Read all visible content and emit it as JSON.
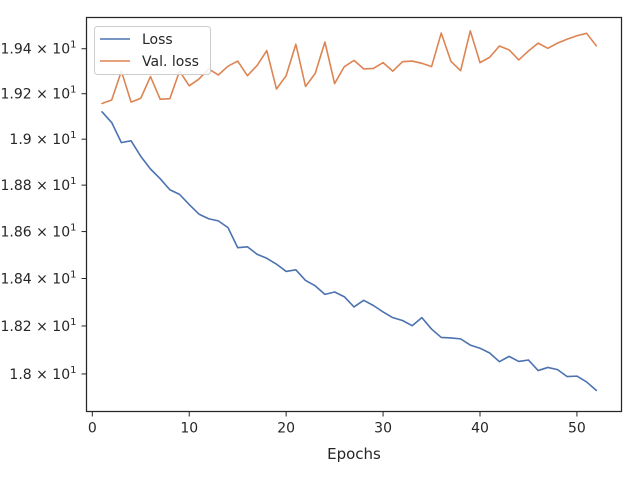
{
  "chart_data": {
    "type": "line",
    "title": "",
    "xlabel": "Epochs",
    "ylabel": "",
    "xlim": [
      -0.6,
      54.6
    ],
    "ylim": [
      17.845,
      19.54
    ],
    "yscale": "log",
    "grid": false,
    "legend_position": "top-left",
    "x_ticks": [
      0,
      10,
      20,
      30,
      40,
      50
    ],
    "x_tick_labels": [
      "0",
      "10",
      "20",
      "30",
      "40",
      "50"
    ],
    "y_ticks": [
      18.0,
      18.2,
      18.4,
      18.6,
      18.8,
      19.0,
      19.2,
      19.4
    ],
    "y_tick_labels": [
      {
        "mantissa": "1.8",
        "exp": "1"
      },
      {
        "mantissa": "1.82",
        "exp": "1"
      },
      {
        "mantissa": "1.84",
        "exp": "1"
      },
      {
        "mantissa": "1.86",
        "exp": "1"
      },
      {
        "mantissa": "1.88",
        "exp": "1"
      },
      {
        "mantissa": "1.9",
        "exp": "1"
      },
      {
        "mantissa": "1.92",
        "exp": "1"
      },
      {
        "mantissa": "1.94",
        "exp": "1"
      }
    ],
    "x": [
      1,
      2,
      3,
      4,
      5,
      6,
      7,
      8,
      9,
      10,
      11,
      12,
      13,
      14,
      15,
      16,
      17,
      18,
      19,
      20,
      21,
      22,
      23,
      24,
      25,
      26,
      27,
      28,
      29,
      30,
      31,
      32,
      33,
      34,
      35,
      36,
      37,
      38,
      39,
      40,
      41,
      42,
      43,
      44,
      45,
      46,
      47,
      48,
      49,
      50,
      51,
      52
    ],
    "series": [
      {
        "name": "Loss",
        "color": "#4c72b0",
        "values": [
          19.12,
          19.073,
          18.985,
          18.993,
          18.925,
          18.87,
          18.828,
          18.78,
          18.76,
          18.716,
          18.675,
          18.655,
          18.646,
          18.617,
          18.531,
          18.535,
          18.503,
          18.486,
          18.461,
          18.43,
          18.437,
          18.392,
          18.369,
          18.333,
          18.343,
          18.323,
          18.28,
          18.308,
          18.286,
          18.259,
          18.235,
          18.223,
          18.201,
          18.235,
          18.187,
          18.152,
          18.15,
          18.146,
          18.12,
          18.107,
          18.087,
          18.051,
          18.073,
          18.052,
          18.058,
          18.014,
          18.027,
          18.018,
          17.989,
          17.991,
          17.967,
          17.932
        ]
      },
      {
        "name": "Val. loss",
        "color": "#dd8452",
        "values": [
          19.157,
          19.172,
          19.3,
          19.163,
          19.18,
          19.276,
          19.176,
          19.178,
          19.3,
          19.235,
          19.265,
          19.31,
          19.283,
          19.322,
          19.345,
          19.28,
          19.325,
          19.392,
          19.221,
          19.28,
          19.42,
          19.232,
          19.29,
          19.43,
          19.245,
          19.32,
          19.348,
          19.31,
          19.312,
          19.338,
          19.3,
          19.342,
          19.345,
          19.335,
          19.32,
          19.47,
          19.344,
          19.302,
          19.48,
          19.338,
          19.362,
          19.412,
          19.395,
          19.35,
          19.39,
          19.425,
          19.402,
          19.425,
          19.443,
          19.458,
          19.469,
          19.413
        ]
      }
    ]
  }
}
